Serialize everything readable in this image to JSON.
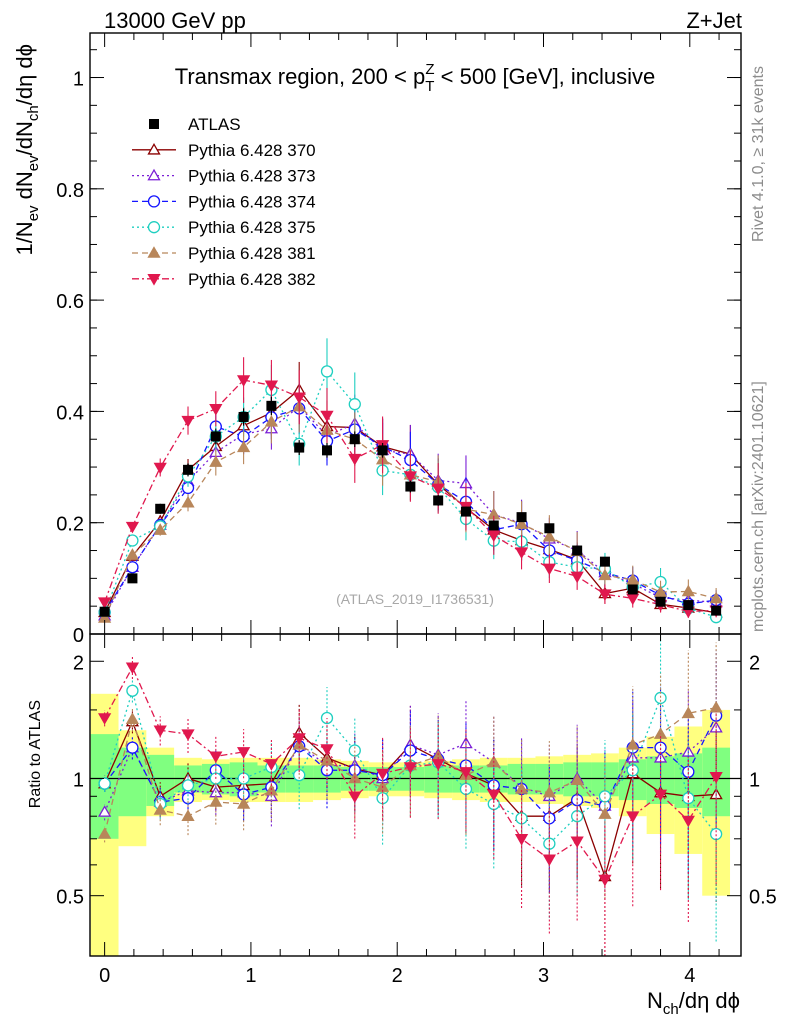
{
  "header": {
    "energy_label": "13000 GeV pp",
    "process_label": "Z+Jet"
  },
  "side": {
    "rivet_label": "Rivet 4.1.0, ≥ 31k events",
    "mcplots_label": "mcplots.cern.ch [arXiv:2401.10621]"
  },
  "chart_data": {
    "type": "scatter",
    "title_parts": [
      "Transmax region, 200 < p",
      "T",
      "Z",
      " < 500 [GeV], inclusive"
    ],
    "watermark": "(ATLAS_2019_I1736531)",
    "xlabel_parts": [
      "N",
      "ch",
      "/dη dϕ"
    ],
    "ylabel_parts": [
      "1/N",
      "ev",
      " dN",
      "ev",
      "/dN",
      "ch",
      "/dη dϕ"
    ],
    "ratio_ylabel": "Ratio to ATLAS",
    "xlim": [
      -0.1,
      4.35
    ],
    "ylim": [
      0,
      1.08
    ],
    "ratio_ylim": [
      0.35,
      2.35
    ],
    "main_ticks": {
      "values": [
        0,
        0.2,
        0.4,
        0.6,
        0.8,
        1
      ],
      "labels": [
        "0",
        "0.2",
        "0.4",
        "0.6",
        "0.8",
        "1"
      ]
    },
    "ratio_ticks": {
      "values": [
        0.5,
        1,
        2
      ],
      "labels": [
        "0.5",
        "1",
        "2"
      ]
    },
    "x_ticks": {
      "values": [
        0,
        1,
        2,
        3,
        4
      ],
      "labels": [
        "0",
        "1",
        "2",
        "3",
        "4"
      ]
    },
    "x": [
      0,
      0.19,
      0.38,
      0.57,
      0.76,
      0.95,
      1.14,
      1.33,
      1.52,
      1.71,
      1.9,
      2.09,
      2.28,
      2.47,
      2.66,
      2.85,
      3.04,
      3.23,
      3.42,
      3.61,
      3.8,
      3.99,
      4.18
    ],
    "data": {
      "name": "ATLAS",
      "values": [
        0.04,
        0.1,
        0.225,
        0.295,
        0.355,
        0.39,
        0.41,
        0.335,
        0.33,
        0.35,
        0.33,
        0.265,
        0.24,
        0.22,
        0.195,
        0.21,
        0.19,
        0.15,
        0.13,
        0.08,
        0.058,
        0.052,
        0.042
      ],
      "band_inner": [
        0.3,
        0.2,
        0.15,
        0.08,
        0.09,
        0.1,
        0.08,
        0.08,
        0.08,
        0.07,
        0.07,
        0.07,
        0.08,
        0.08,
        0.08,
        0.09,
        0.09,
        0.1,
        0.1,
        0.12,
        0.14,
        0.16,
        0.2
      ],
      "band_outer": [
        0.65,
        0.33,
        0.2,
        0.13,
        0.12,
        0.13,
        0.13,
        0.13,
        0.12,
        0.11,
        0.1,
        0.1,
        0.11,
        0.12,
        0.13,
        0.13,
        0.14,
        0.15,
        0.16,
        0.2,
        0.28,
        0.36,
        0.5
      ]
    },
    "series": [
      {
        "name": "Pythia 6.428 370",
        "color": "#8b0000",
        "marker": "triangle-up-open",
        "line": "solid",
        "ratio": [
          0.97,
          1.4,
          0.9,
          1.0,
          0.95,
          0.96,
          0.97,
          1.31,
          1.13,
          1.06,
          1.02,
          1.22,
          1.12,
          1.03,
          0.96,
          0.8,
          0.8,
          0.89,
          0.56,
          1.03,
          0.92,
          0.9,
          0.91
        ]
      },
      {
        "name": "Pythia 6.428 373",
        "color": "#7b1fd6",
        "marker": "triangle-up-open",
        "line": "dotted",
        "ratio": [
          0.82,
          1.2,
          0.87,
          0.93,
          0.92,
          0.92,
          0.9,
          1.22,
          1.08,
          1.08,
          1.0,
          1.22,
          1.15,
          1.23,
          1.1,
          0.95,
          0.9,
          1.0,
          0.85,
          1.13,
          1.13,
          1.17,
          1.35
        ]
      },
      {
        "name": "Pythia 6.428 374",
        "color": "#1515ff",
        "marker": "circle-open",
        "line": "dashed",
        "ratio": [
          0.97,
          1.2,
          0.87,
          0.89,
          1.05,
          0.91,
          0.95,
          1.21,
          1.05,
          1.05,
          1.02,
          1.18,
          1.12,
          1.08,
          0.96,
          0.94,
          0.79,
          0.88,
          0.85,
          1.2,
          1.2,
          1.04,
          1.45
        ]
      },
      {
        "name": "Pythia 6.428 375",
        "color": "#1fcfc0",
        "marker": "circle-open",
        "line": "dotted",
        "ratio": [
          0.97,
          1.68,
          0.86,
          0.96,
          1.0,
          1.0,
          1.07,
          1.02,
          1.43,
          1.18,
          0.89,
          1.08,
          1.1,
          0.94,
          0.86,
          0.79,
          0.68,
          0.8,
          0.9,
          1.05,
          1.61,
          0.89,
          0.72
        ]
      },
      {
        "name": "Pythia 6.428 381",
        "color": "#b8865a",
        "marker": "triangle-up-filled",
        "line": "dashed",
        "ratio": [
          0.72,
          1.42,
          0.83,
          0.8,
          0.87,
          0.86,
          0.93,
          1.22,
          1.11,
          1.0,
          0.95,
          1.08,
          1.14,
          1.02,
          1.1,
          0.94,
          0.92,
          0.99,
          0.81,
          1.22,
          1.3,
          1.47,
          1.52
        ]
      },
      {
        "name": "Pythia 6.428 382",
        "color": "#e0184e",
        "marker": "triangle-down-filled",
        "line": "dashdot",
        "ratio": [
          1.43,
          1.93,
          1.33,
          1.3,
          1.14,
          1.17,
          1.09,
          1.27,
          1.19,
          0.9,
          1.03,
          1.07,
          1.09,
          1.04,
          0.91,
          0.7,
          0.62,
          0.69,
          0.55,
          0.8,
          0.91,
          0.78,
          1.01
        ]
      }
    ]
  }
}
